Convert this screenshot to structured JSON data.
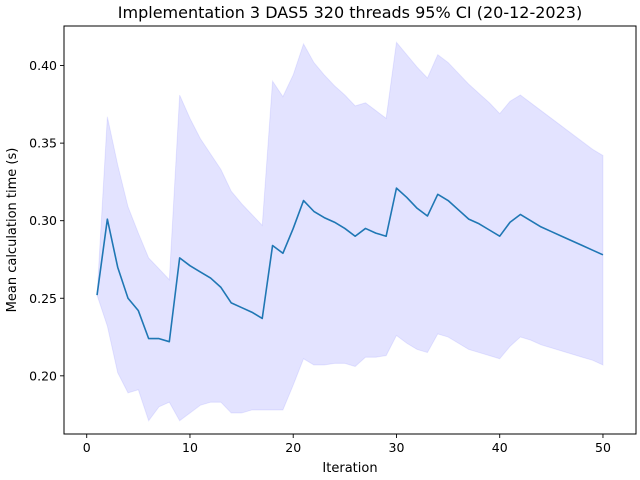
{
  "chart_data": {
    "type": "line",
    "title": "Implementation 3 DAS5 320 threads 95% CI (20-12-2023)",
    "xlabel": "Iteration",
    "ylabel": "Mean calculation time (s)",
    "xlim": [
      -2.2,
      53.2
    ],
    "ylim": [
      0.1625,
      0.4255
    ],
    "xticks": [
      0,
      10,
      20,
      30,
      40,
      50
    ],
    "yticks": [
      0.2,
      0.25,
      0.3,
      0.35,
      0.4
    ],
    "ytick_labels": [
      "0.20",
      "0.25",
      "0.30",
      "0.35",
      "0.40"
    ],
    "grid": false,
    "colors": {
      "line": "#1f77b4",
      "band": "#0000ff",
      "band_opacity": 0.11
    },
    "series": [
      {
        "x": [
          1,
          2,
          3,
          4,
          5,
          6,
          7,
          8,
          9,
          10,
          11,
          12,
          13,
          14,
          15,
          16,
          17,
          18,
          19,
          20,
          21,
          22,
          23,
          24,
          25,
          26,
          27,
          28,
          29,
          30,
          31,
          32,
          33,
          34,
          35,
          36,
          37,
          38,
          39,
          40,
          41,
          42,
          43,
          44,
          45,
          46,
          47,
          48,
          49,
          50
        ],
        "y": [
          0.252,
          0.301,
          0.27,
          0.25,
          0.242,
          0.224,
          0.224,
          0.222,
          0.276,
          0.271,
          0.267,
          0.263,
          0.257,
          0.247,
          0.244,
          0.241,
          0.237,
          0.284,
          0.279,
          0.295,
          0.313,
          0.306,
          0.302,
          0.299,
          0.295,
          0.29,
          0.295,
          0.292,
          0.29,
          0.321,
          0.315,
          0.308,
          0.303,
          0.317,
          0.313,
          0.307,
          0.301,
          0.298,
          0.294,
          0.29,
          0.299,
          0.304,
          0.3,
          0.296,
          0.293,
          0.29,
          0.287,
          0.284,
          0.281,
          0.278
        ],
        "ci_lower": [
          0.252,
          0.232,
          0.202,
          0.189,
          0.191,
          0.171,
          0.18,
          0.183,
          0.171,
          0.176,
          0.181,
          0.183,
          0.183,
          0.176,
          0.176,
          0.178,
          0.178,
          0.178,
          0.178,
          0.194,
          0.211,
          0.207,
          0.207,
          0.208,
          0.208,
          0.206,
          0.212,
          0.212,
          0.213,
          0.226,
          0.221,
          0.217,
          0.215,
          0.227,
          0.225,
          0.221,
          0.217,
          0.215,
          0.213,
          0.211,
          0.219,
          0.225,
          0.223,
          0.22,
          0.218,
          0.216,
          0.214,
          0.212,
          0.21,
          0.207
        ],
        "ci_upper": [
          0.252,
          0.367,
          0.336,
          0.309,
          0.292,
          0.276,
          0.269,
          0.262,
          0.381,
          0.366,
          0.353,
          0.343,
          0.333,
          0.319,
          0.311,
          0.304,
          0.297,
          0.39,
          0.38,
          0.394,
          0.414,
          0.402,
          0.394,
          0.387,
          0.381,
          0.374,
          0.376,
          0.371,
          0.366,
          0.415,
          0.407,
          0.399,
          0.392,
          0.407,
          0.402,
          0.395,
          0.388,
          0.382,
          0.376,
          0.369,
          0.377,
          0.381,
          0.376,
          0.371,
          0.366,
          0.361,
          0.356,
          0.351,
          0.346,
          0.342
        ]
      }
    ]
  }
}
